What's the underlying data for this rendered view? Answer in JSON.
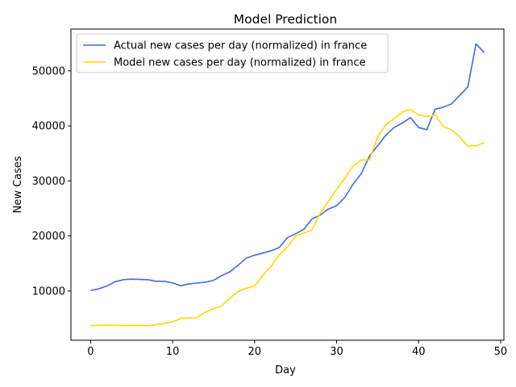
{
  "chart_data": {
    "type": "line",
    "title": "Model Prediction",
    "xlabel": "Day",
    "ylabel": "New Cases",
    "xlim": [
      -2.4,
      50.4
    ],
    "ylim": [
      1050,
      57600
    ],
    "xticks": [
      0,
      10,
      20,
      30,
      40,
      50
    ],
    "yticks": [
      10000,
      20000,
      30000,
      40000,
      50000
    ],
    "grid": false,
    "legend_position": "upper-left",
    "x": [
      0,
      1,
      2,
      3,
      4,
      5,
      6,
      7,
      8,
      9,
      10,
      11,
      12,
      13,
      14,
      15,
      16,
      17,
      18,
      19,
      20,
      21,
      22,
      23,
      24,
      25,
      26,
      27,
      28,
      29,
      30,
      31,
      32,
      33,
      34,
      35,
      36,
      37,
      38,
      39,
      40,
      41,
      42,
      43,
      44,
      45,
      46,
      47,
      48
    ],
    "series": [
      {
        "name": "Actual new cases per day (normalized) in france",
        "color": "#4169e1",
        "values": [
          10100,
          10400,
          10900,
          11700,
          12050,
          12150,
          12100,
          12050,
          11750,
          11750,
          11450,
          10950,
          11300,
          11450,
          11600,
          11950,
          12800,
          13500,
          14700,
          16000,
          16500,
          16900,
          17300,
          17900,
          19700,
          20400,
          21200,
          23100,
          23800,
          24900,
          25500,
          27000,
          29400,
          31300,
          34500,
          36400,
          38300,
          39700,
          40500,
          41500,
          39700,
          39300,
          43000,
          43400,
          44000,
          45500,
          47100,
          54900,
          53300
        ]
      },
      {
        "name": "Model new cases per day (normalized) in france",
        "color": "#ffd700",
        "values": [
          3700,
          3750,
          3800,
          3800,
          3700,
          3750,
          3750,
          3700,
          3900,
          4100,
          4400,
          5000,
          5100,
          5150,
          6200,
          6800,
          7300,
          8700,
          9900,
          10500,
          10900,
          12800,
          14500,
          16600,
          18000,
          20000,
          20500,
          21100,
          24200,
          26300,
          28500,
          30500,
          32700,
          33800,
          33800,
          38000,
          40200,
          41300,
          42500,
          43000,
          42000,
          41700,
          42000,
          39900,
          39300,
          38000,
          36300,
          36400,
          37000
        ]
      }
    ]
  }
}
